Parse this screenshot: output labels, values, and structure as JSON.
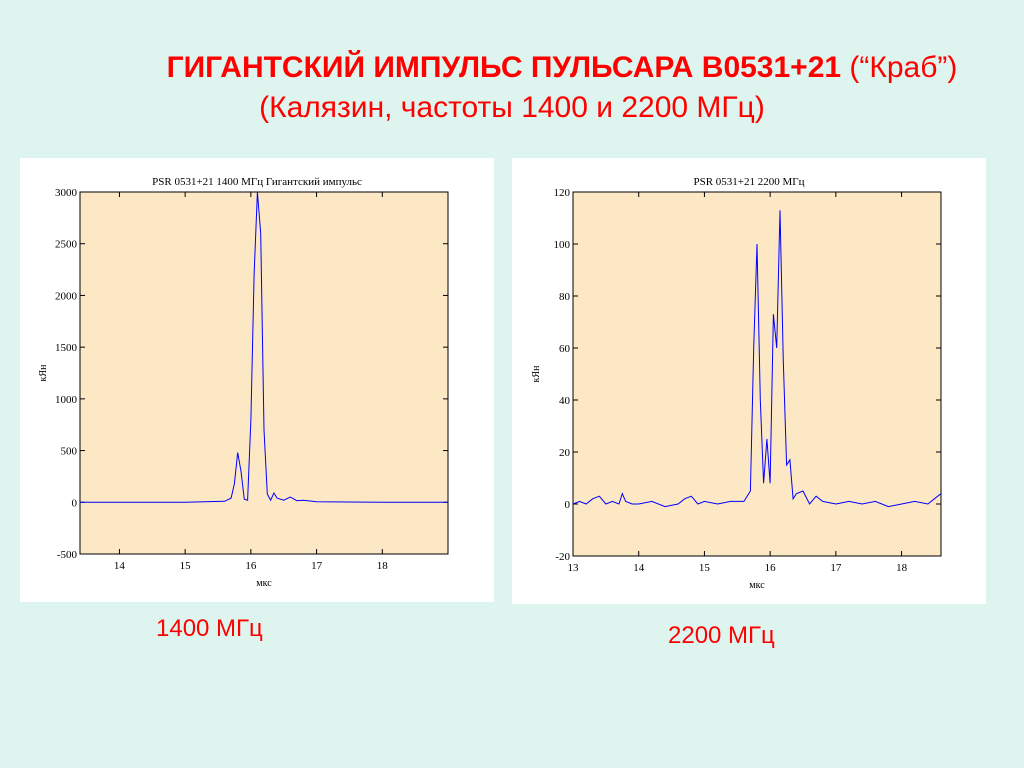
{
  "slide": {
    "title_bold": "ГИГАНТСКИЙ ИМПУЛЬС ПУЛЬСАРА  B0531+21",
    "title_rest": " (“Краб”)",
    "subtitle": "(Калязин, частоты 1400  и 2200 МГц)",
    "caption_left": "1400 МГц",
    "caption_right": "2200  МГц"
  },
  "colors": {
    "background": "#ddf5ee",
    "title": "#ff0000",
    "plot_bg": "#fde8c6",
    "trace": "#0000ff"
  },
  "chart_data": [
    {
      "type": "line",
      "title": "PSR 0531+21 1400 МГц Гигантский импульс",
      "xlabel": "мкс",
      "ylabel": "кЯн",
      "xlim": [
        13.4,
        19.0
      ],
      "ylim": [
        -500,
        3000
      ],
      "xticks": [
        14,
        15,
        16,
        17,
        18
      ],
      "yticks": [
        -500,
        0,
        500,
        1000,
        1500,
        2000,
        2500,
        3000
      ],
      "grid": false,
      "series": [
        {
          "x": [
            13.4,
            15.0,
            15.6,
            15.7,
            15.75,
            15.8,
            15.85,
            15.9,
            15.95,
            16.0,
            16.05,
            16.1,
            16.15,
            16.2,
            16.25,
            16.3,
            16.35,
            16.4,
            16.5,
            16.6,
            16.7,
            16.8,
            17.0,
            18.0,
            19.0
          ],
          "y": [
            0,
            0,
            10,
            40,
            180,
            480,
            300,
            30,
            20,
            800,
            2200,
            3000,
            2600,
            700,
            80,
            20,
            90,
            40,
            20,
            50,
            15,
            20,
            5,
            0,
            0
          ]
        }
      ]
    },
    {
      "type": "line",
      "title": "PSR 0531+21     2200 МГц",
      "xlabel": "мкс",
      "ylabel": "кЯн",
      "xlim": [
        13.0,
        18.6
      ],
      "ylim": [
        -20,
        120
      ],
      "xticks": [
        13,
        14,
        15,
        16,
        17,
        18
      ],
      "yticks": [
        -20,
        0,
        20,
        40,
        60,
        80,
        100,
        120
      ],
      "grid": false,
      "series": [
        {
          "x": [
            13.0,
            13.1,
            13.2,
            13.3,
            13.4,
            13.5,
            13.6,
            13.7,
            13.75,
            13.8,
            13.9,
            14.0,
            14.2,
            14.4,
            14.6,
            14.7,
            14.8,
            14.9,
            15.0,
            15.2,
            15.4,
            15.6,
            15.7,
            15.75,
            15.8,
            15.85,
            15.9,
            15.95,
            16.0,
            16.05,
            16.1,
            16.15,
            16.2,
            16.25,
            16.3,
            16.35,
            16.4,
            16.5,
            16.6,
            16.7,
            16.8,
            17.0,
            17.2,
            17.4,
            17.6,
            17.8,
            18.0,
            18.2,
            18.4,
            18.5,
            18.6
          ],
          "y": [
            0,
            1,
            0,
            2,
            3,
            0,
            1,
            0,
            4,
            1,
            0,
            0,
            1,
            -1,
            0,
            2,
            3,
            0,
            1,
            0,
            1,
            1,
            5,
            60,
            100,
            40,
            8,
            25,
            8,
            73,
            60,
            113,
            55,
            15,
            17,
            2,
            4,
            5,
            0,
            3,
            1,
            0,
            1,
            0,
            1,
            -1,
            0,
            1,
            0,
            2,
            4
          ]
        }
      ]
    }
  ]
}
